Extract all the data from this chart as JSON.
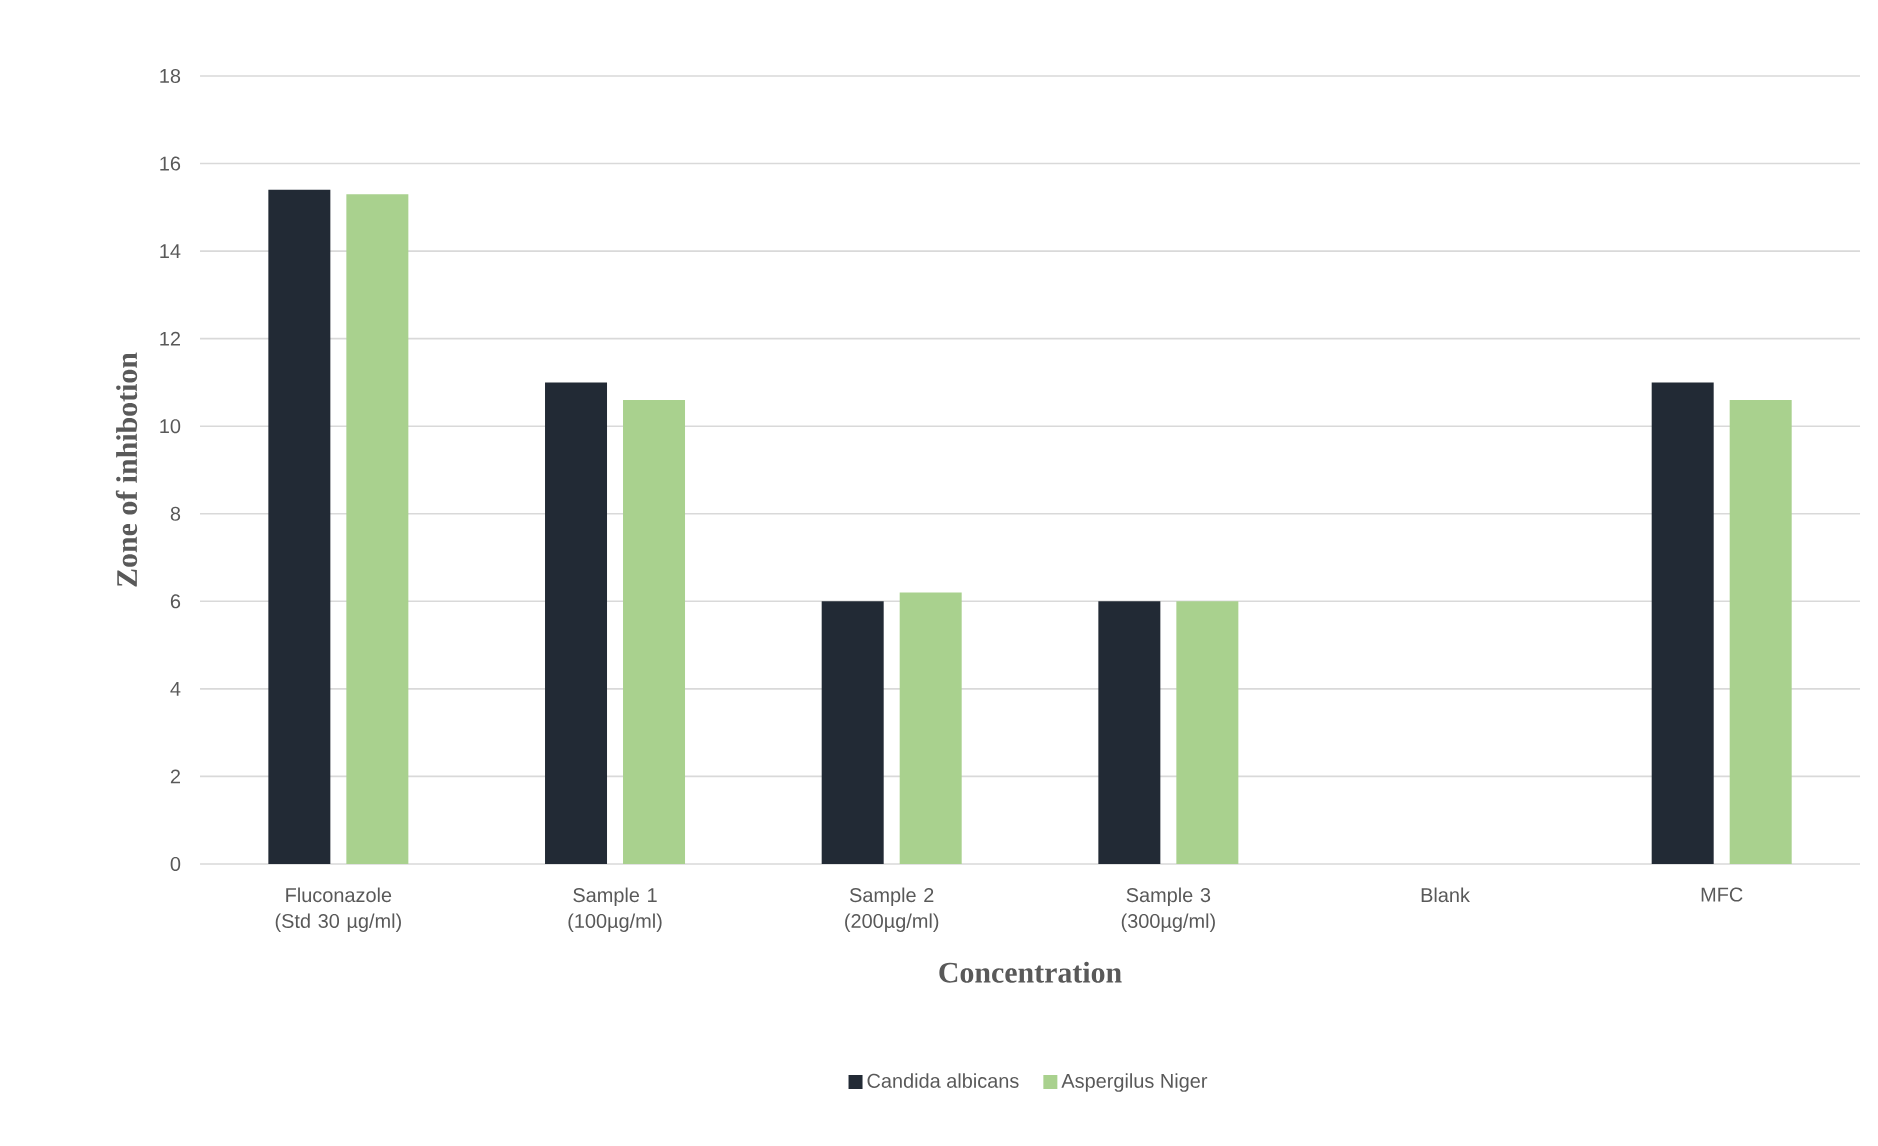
{
  "chart_data": {
    "type": "bar",
    "xlabel": "Concentration",
    "ylabel": "Zone of inhibotion",
    "categories": [
      "Fluconazole (Std 30 µg/ml)",
      "Sample 1 (100µg/ml)",
      "Sample 2 (200µg/ml)",
      "Sample 3 (300µg/ml)",
      "Blank",
      "MFC"
    ],
    "series": [
      {
        "name": "Candida albicans",
        "color": "#222a35",
        "values": [
          15.4,
          11.0,
          6.0,
          6.0,
          0,
          11.0
        ]
      },
      {
        "name": "Aspergilus Niger",
        "color": "#a9d18e",
        "values": [
          15.3,
          10.6,
          6.2,
          6.0,
          0,
          10.6
        ]
      }
    ],
    "ylim": [
      0,
      18
    ],
    "yticks": [
      0,
      2,
      4,
      6,
      8,
      10,
      12,
      14,
      16,
      18
    ],
    "grid": "y",
    "legend": "bottom"
  }
}
